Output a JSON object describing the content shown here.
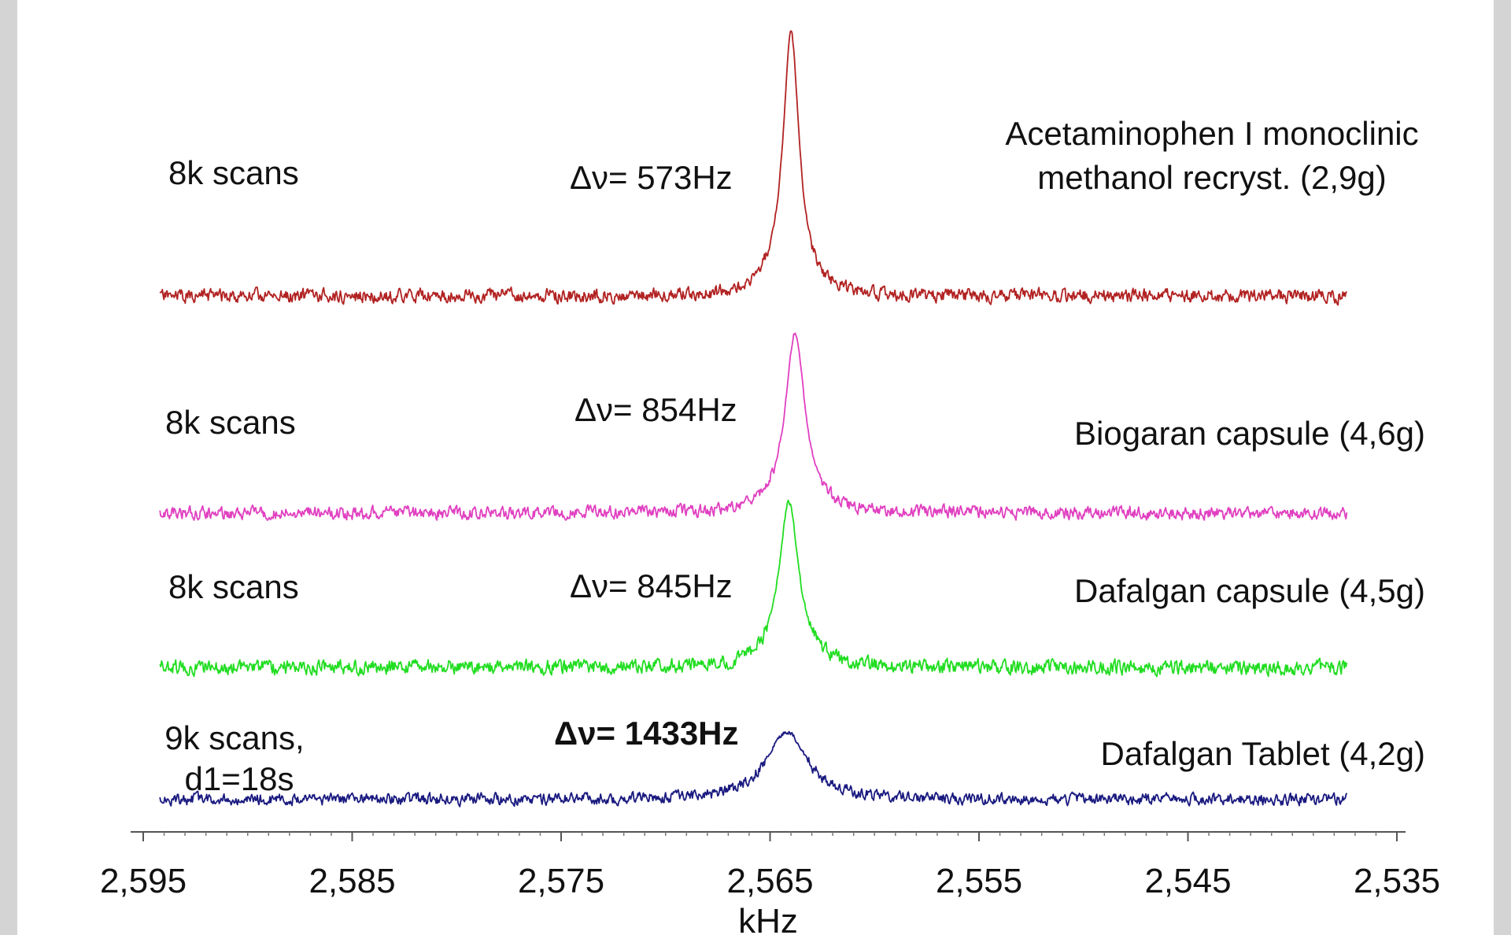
{
  "chart_data": {
    "type": "line",
    "title": "",
    "xlabel": "kHz",
    "ylabel": "",
    "xlim": [
      2597.2,
      2532.4
    ],
    "x_reversed": true,
    "grid": false,
    "xticks": [
      2595,
      2585,
      2575,
      2565,
      2555,
      2545,
      2535
    ],
    "xtick_labels": [
      "2,595",
      "2,585",
      "2,575",
      "2,565",
      "2,555",
      "2,545",
      "2,535"
    ],
    "x_range": [
      2594.2,
      2537.4
    ],
    "series": [
      {
        "color": "#b22222",
        "peak_x": 2564.0,
        "scans_label": "8k scans",
        "linewidth_label": "Δν= 573Hz",
        "sample_label": [
          "Acetaminophen I monoclinic",
          "methanol recryst. (2,9g)"
        ]
      },
      {
        "color": "#e040c0",
        "peak_x": 2563.8,
        "scans_label": "8k scans",
        "linewidth_label": "Δν= 854Hz",
        "sample_label": [
          "Biogaran capsule (4,6g)"
        ]
      },
      {
        "color": "#22dd22",
        "peak_x": 2564.1,
        "scans_label": "8k scans",
        "linewidth_label": "Δν= 845Hz",
        "sample_label": [
          "Dafalgan capsule (4,5g)"
        ]
      },
      {
        "color": "#1a1a80",
        "peak_x": 2564.2,
        "scans_label": "9k scans,",
        "scans_label_2": "d1=18s",
        "linewidth_label": "Δν= 1433Hz",
        "sample_label": [
          "Dafalgan Tablet (4,2g)"
        ]
      }
    ]
  }
}
